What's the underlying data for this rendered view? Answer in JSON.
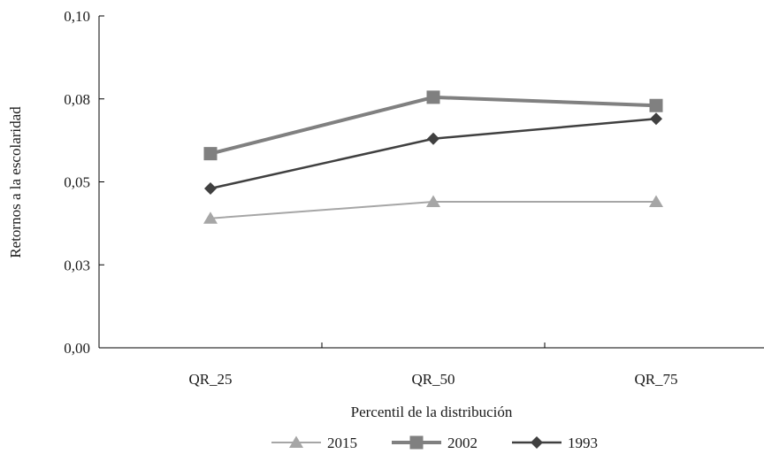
{
  "chart_data": {
    "type": "line",
    "categories": [
      "QR_25",
      "QR_50",
      "QR_75"
    ],
    "series": [
      {
        "name": "2015",
        "values": [
          0.039,
          0.044,
          0.044
        ],
        "color": "#a6a6a6",
        "marker": "triangle"
      },
      {
        "name": "2002",
        "values": [
          0.0585,
          0.0755,
          0.073
        ],
        "color": "#808080",
        "marker": "square"
      },
      {
        "name": "1993",
        "values": [
          0.048,
          0.063,
          0.069
        ],
        "color": "#404040",
        "marker": "diamond"
      }
    ],
    "title": "",
    "xlabel": "Percentil de la distribución",
    "ylabel": "Retornos a la escolaridad",
    "ylim": [
      0,
      0.1
    ],
    "yticks": [
      0,
      0.025,
      0.05,
      0.075,
      0.1
    ],
    "ytick_labels": [
      "0,00",
      "0,03",
      "0,05",
      "0,08",
      "0,10"
    ],
    "grid": false,
    "legend_position": "bottom"
  }
}
